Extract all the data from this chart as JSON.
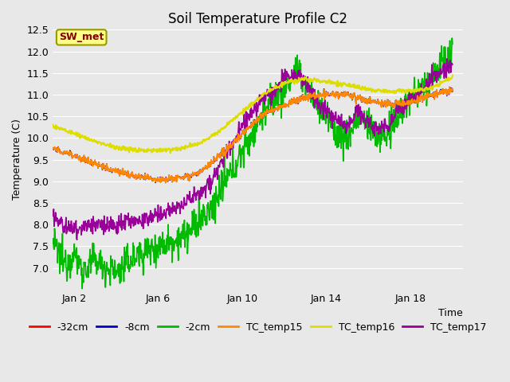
{
  "title": "Soil Temperature Profile C2",
  "xlabel": "Time",
  "ylabel": "Temperature (C)",
  "ylim": [
    6.5,
    12.5
  ],
  "yticks": [
    7.0,
    7.5,
    8.0,
    8.5,
    9.0,
    9.5,
    10.0,
    10.5,
    11.0,
    11.5,
    12.0,
    12.5
  ],
  "xtick_labels": [
    "Jan 2",
    "Jan 6",
    "Jan 10",
    "Jan 14",
    "Jan 18"
  ],
  "xtick_positions": [
    1,
    5,
    9,
    13,
    17
  ],
  "xlim": [
    0,
    19.5
  ],
  "colors": {
    "-32cm": "#ff0000",
    "-8cm": "#0000cc",
    "-2cm": "#00bb00",
    "TC_temp15": "#ff8800",
    "TC_temp16": "#dddd00",
    "TC_temp17": "#990099"
  },
  "background_color": "#e8e8e8",
  "fig_bg": "#e8e8e8",
  "annotation_text": "SW_met",
  "annotation_color": "#880000",
  "annotation_bg": "#ffff88",
  "annotation_border": "#999900",
  "title_fontsize": 12,
  "axis_fontsize": 9,
  "tick_fontsize": 9,
  "legend_fontsize": 9
}
